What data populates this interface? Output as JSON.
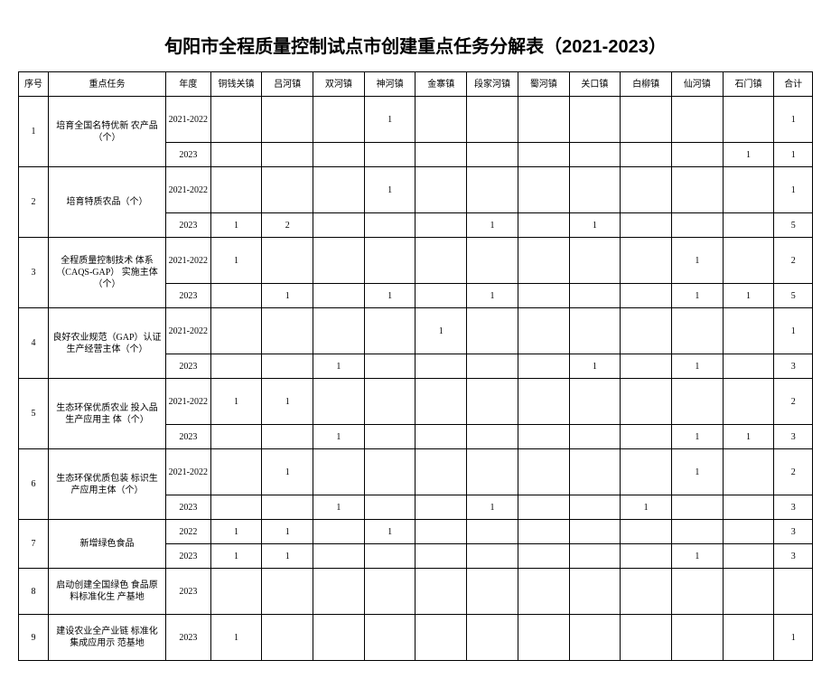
{
  "title": "旬阳市全程质量控制试点市创建重点任务分解表（2021-2023）",
  "headers": {
    "seq": "序号",
    "task": "重点任务",
    "year": "年度",
    "towns": [
      "铜钱关镇",
      "吕河镇",
      "双河镇",
      "神河镇",
      "金寨镇",
      "段家河镇",
      "蜀河镇",
      "关口镇",
      "白柳镇",
      "仙河镇",
      "石门镇"
    ],
    "total": "合计"
  },
  "rows": [
    {
      "seq": "1",
      "task": "培育全国名特优新 农产品（个）",
      "periods": [
        {
          "year": "2021-2022",
          "vals": [
            "",
            "",
            "",
            "1",
            "",
            "",
            "",
            "",
            "",
            "",
            ""
          ],
          "total": "1"
        },
        {
          "year": "2023",
          "vals": [
            "",
            "",
            "",
            "",
            "",
            "",
            "",
            "",
            "",
            "",
            "1"
          ],
          "total": "1"
        }
      ]
    },
    {
      "seq": "2",
      "task": "培育特质农品（个）",
      "periods": [
        {
          "year": "2021-2022",
          "vals": [
            "",
            "",
            "",
            "1",
            "",
            "",
            "",
            "",
            "",
            "",
            ""
          ],
          "total": "1"
        },
        {
          "year": "2023",
          "vals": [
            "1",
            "2",
            "",
            "",
            "",
            "1",
            "",
            "1",
            "",
            "",
            ""
          ],
          "total": "5"
        }
      ]
    },
    {
      "seq": "3",
      "task": "全程质量控制技术 体系（CAQS-GAP） 实施主体（个）",
      "periods": [
        {
          "year": "2021-2022",
          "vals": [
            "1",
            "",
            "",
            "",
            "",
            "",
            "",
            "",
            "",
            "1",
            ""
          ],
          "total": "2"
        },
        {
          "year": "2023",
          "vals": [
            "",
            "1",
            "",
            "1",
            "",
            "1",
            "",
            "",
            "",
            "1",
            "1"
          ],
          "total": "5"
        }
      ]
    },
    {
      "seq": "4",
      "task": "良好农业规范（GAP）认证生产经营主体（个）",
      "periods": [
        {
          "year": "2021-2022",
          "vals": [
            "",
            "",
            "",
            "",
            "1",
            "",
            "",
            "",
            "",
            "",
            ""
          ],
          "total": "1"
        },
        {
          "year": "2023",
          "vals": [
            "",
            "",
            "1",
            "",
            "",
            "",
            "",
            "1",
            "",
            "1",
            ""
          ],
          "total": "3"
        }
      ]
    },
    {
      "seq": "5",
      "task": "生态环保优质农业 投入品生产应用主 体（个）",
      "periods": [
        {
          "year": "2021-2022",
          "vals": [
            "1",
            "1",
            "",
            "",
            "",
            "",
            "",
            "",
            "",
            "",
            ""
          ],
          "total": "2"
        },
        {
          "year": "2023",
          "vals": [
            "",
            "",
            "1",
            "",
            "",
            "",
            "",
            "",
            "",
            "1",
            "1"
          ],
          "total": "3"
        }
      ]
    },
    {
      "seq": "6",
      "task": "生态环保优质包装 标识生产应用主体（个）",
      "periods": [
        {
          "year": "2021-2022",
          "vals": [
            "",
            "1",
            "",
            "",
            "",
            "",
            "",
            "",
            "",
            "1",
            ""
          ],
          "total": "2"
        },
        {
          "year": "2023",
          "vals": [
            "",
            "",
            "1",
            "",
            "",
            "1",
            "",
            "",
            "1",
            "",
            ""
          ],
          "total": "3"
        }
      ]
    },
    {
      "seq": "7",
      "task": "新增绿色食品",
      "periods": [
        {
          "year": "2022",
          "vals": [
            "1",
            "1",
            "",
            "1",
            "",
            "",
            "",
            "",
            "",
            "",
            ""
          ],
          "total": "3"
        },
        {
          "year": "2023",
          "vals": [
            "1",
            "1",
            "",
            "",
            "",
            "",
            "",
            "",
            "",
            "1",
            ""
          ],
          "total": "3"
        }
      ]
    },
    {
      "seq": "8",
      "task": "启动创建全国绿色 食品原料标准化生 产基地",
      "periods": [
        {
          "year": "2023",
          "vals": [
            "",
            "",
            "",
            "",
            "",
            "",
            "",
            "",
            "",
            "",
            ""
          ],
          "total": ""
        }
      ]
    },
    {
      "seq": "9",
      "task": "建设农业全产业链 标准化集成应用示 范基地",
      "periods": [
        {
          "year": "2023",
          "vals": [
            "1",
            "",
            "",
            "",
            "",
            "",
            "",
            "",
            "",
            "",
            ""
          ],
          "total": "1"
        }
      ]
    }
  ]
}
